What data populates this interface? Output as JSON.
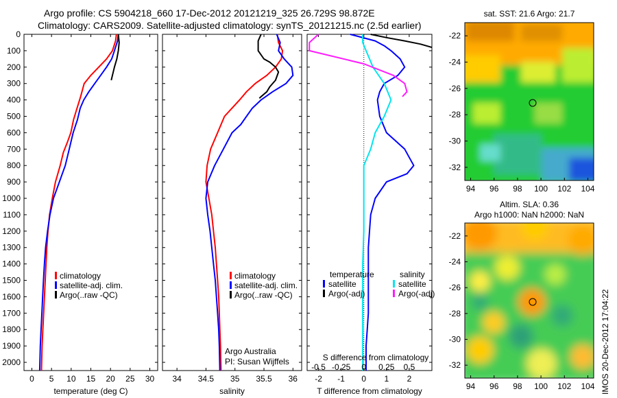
{
  "header": {
    "line1": "Argo profile: CS 5904218_660 17-Dec-2012 20121219_325 26.729S 98.872E",
    "line2": "Climatology: CARS2009. Satellite-adjusted climatology: synTS_20121215.nc (2.5d earlier)"
  },
  "footer_note": "IMOS 20-Dec-2012 17:04:22",
  "colors": {
    "climatology": "#ff0000",
    "satellite": "#0000ff",
    "argo": "#000000",
    "cyan": "#00e5ee",
    "magenta": "#ff1aff"
  },
  "depth_axis": {
    "ticks": [
      "0",
      "100",
      "200",
      "300",
      "400",
      "500",
      "600",
      "700",
      "800",
      "900",
      "1000",
      "1100",
      "1200",
      "1300",
      "1400",
      "1500",
      "1600",
      "1700",
      "1800",
      "1900",
      "2000"
    ]
  },
  "chart_data": [
    {
      "type": "line",
      "panel": "temperature",
      "xlabel": "temperature (deg C)",
      "xlim": [
        -2,
        32
      ],
      "ylim": [
        2050,
        0
      ],
      "xticks": [
        "0",
        "5",
        "10",
        "15",
        "20",
        "25",
        "30"
      ],
      "legend": {
        "items": [
          "climatology",
          "satellite-adj. clim.",
          "Argo(..raw -QC)"
        ]
      },
      "series": [
        {
          "name": "climatology",
          "color": "#ff0000",
          "x": [
            21.5,
            21.3,
            20.5,
            19.0,
            17.0,
            15.0,
            13.3,
            12.4,
            11.5,
            10.6,
            9.9,
            9.0,
            8.0,
            7.2,
            6.0,
            5.2,
            4.5,
            4.1,
            3.8,
            3.6,
            3.4,
            3.2,
            3.0,
            2.8,
            2.6,
            2.45
          ],
          "y": [
            0,
            40,
            100,
            150,
            200,
            250,
            300,
            380,
            450,
            520,
            600,
            660,
            720,
            800,
            900,
            1000,
            1100,
            1200,
            1300,
            1400,
            1500,
            1600,
            1700,
            1800,
            1900,
            2050
          ]
        },
        {
          "name": "satellite-adj. clim.",
          "color": "#0000ff",
          "x": [
            22.0,
            21.8,
            21.0,
            20.3,
            19.0,
            17.5,
            16.0,
            14.5,
            13.2,
            12.3,
            11.6,
            10.5,
            9.5,
            8.5,
            7.0,
            5.5,
            4.6,
            4.0,
            3.5,
            3.2,
            2.95,
            2.75,
            2.55,
            2.35,
            2.15,
            2.0
          ],
          "y": [
            0,
            40,
            100,
            150,
            200,
            250,
            300,
            350,
            400,
            450,
            520,
            600,
            700,
            800,
            900,
            1000,
            1100,
            1200,
            1300,
            1400,
            1500,
            1600,
            1700,
            1800,
            1900,
            2050
          ]
        },
        {
          "name": "Argo(..raw -QC)",
          "color": "#000000",
          "x": [
            22.0,
            22.2,
            22.0,
            21.6,
            21.0,
            20.5,
            20.2
          ],
          "y": [
            0,
            50,
            100,
            150,
            200,
            250,
            280
          ]
        }
      ]
    },
    {
      "type": "line",
      "panel": "salinity",
      "xlabel": "salinity",
      "xlim": [
        33.75,
        36.15
      ],
      "ylim": [
        2050,
        0
      ],
      "xticks": [
        "34",
        "34.5",
        "35",
        "35.5",
        "36"
      ],
      "legend": {
        "items": [
          "climatology",
          "satellite-adj. clim.",
          "Argo(..raw -QC)"
        ]
      },
      "annotation": [
        "Argo Australia",
        "PI: Susan Wijffels"
      ],
      "series": [
        {
          "name": "climatology",
          "color": "#ff0000",
          "x": [
            35.73,
            35.75,
            35.82,
            35.8,
            35.7,
            35.55,
            35.35,
            35.2,
            35.08,
            34.95,
            34.82,
            34.7,
            34.58,
            34.52,
            34.5,
            34.55,
            34.6,
            34.63,
            34.66,
            34.68,
            34.7,
            34.72,
            34.73,
            34.74,
            34.75,
            34.76
          ],
          "y": [
            0,
            50,
            100,
            150,
            200,
            250,
            300,
            350,
            400,
            450,
            500,
            600,
            700,
            800,
            900,
            1000,
            1100,
            1200,
            1300,
            1400,
            1500,
            1600,
            1700,
            1800,
            1900,
            2050
          ]
        },
        {
          "name": "satellite-adj. clim.",
          "color": "#0000ff",
          "x": [
            35.72,
            35.78,
            35.75,
            35.85,
            35.98,
            36.0,
            35.88,
            35.65,
            35.45,
            35.3,
            35.2,
            35.1,
            34.95,
            34.8,
            34.65,
            34.53,
            34.5,
            34.53,
            34.57,
            34.6,
            34.63,
            34.66,
            34.68,
            34.7,
            34.72,
            34.73,
            34.74
          ],
          "y": [
            0,
            50,
            100,
            150,
            200,
            250,
            300,
            350,
            400,
            450,
            500,
            550,
            600,
            700,
            800,
            900,
            1000,
            1100,
            1200,
            1300,
            1400,
            1500,
            1600,
            1700,
            1800,
            1900,
            2050
          ]
        },
        {
          "name": "Argo(..raw -QC)",
          "color": "#000000",
          "x": [
            35.45,
            35.4,
            35.4,
            35.5,
            35.6,
            35.7,
            35.75,
            35.7,
            35.6,
            35.55,
            35.45,
            35.42
          ],
          "y": [
            0,
            40,
            100,
            150,
            170,
            200,
            230,
            280,
            320,
            350,
            380,
            390
          ]
        }
      ]
    },
    {
      "type": "line",
      "panel": "difference",
      "xlabel": "T difference from climatology",
      "top_label": "S difference from climatology",
      "xlim": [
        -2.5,
        3.0
      ],
      "ylim": [
        2050,
        0
      ],
      "xticks": [
        "-2",
        "-1",
        "0",
        "1",
        "2"
      ],
      "top_ticks": [
        "-0.5",
        "-0.25",
        "0",
        "0.25",
        "0.5"
      ],
      "legend": {
        "temperature_header": "temperature",
        "salinity_header": "salinity",
        "items": [
          "satellite",
          "Argo(-adj)",
          "satellite",
          "Argo(-adj)"
        ]
      },
      "series": [
        {
          "name": "satellite",
          "group": "temperature",
          "color": "#0000ff",
          "x": [
            -0.6,
            0.5,
            0.9,
            1.2,
            1.6,
            1.8,
            1.5,
            0.9,
            0.7,
            0.6,
            0.7,
            1.0,
            1.8,
            2.0,
            2.2,
            1.9,
            1.0,
            0.5,
            0.3,
            0.25,
            0.2,
            0.2,
            0.2,
            0.15,
            0.1,
            0.1
          ],
          "y": [
            0,
            40,
            70,
            100,
            150,
            200,
            250,
            300,
            350,
            400,
            500,
            600,
            700,
            750,
            800,
            850,
            900,
            1000,
            1100,
            1200,
            1300,
            1500,
            1700,
            1800,
            1900,
            2050
          ]
        },
        {
          "name": "Argo(-adj)",
          "group": "temperature",
          "color": "#000000",
          "x": [
            0.3,
            1.0,
            1.8,
            2.5,
            3.0
          ],
          "y": [
            0,
            20,
            40,
            60,
            80
          ]
        },
        {
          "name": "satellite",
          "group": "salinity",
          "color": "#00e5ee",
          "x": [
            -0.05,
            -0.05,
            0.1,
            0.4,
            0.9,
            1.2,
            0.9,
            0.5,
            0.3,
            0.0,
            0.0,
            0.0,
            0.0,
            -0.05,
            -0.05,
            -0.05,
            -0.05
          ],
          "y": [
            0,
            50,
            100,
            200,
            300,
            400,
            500,
            600,
            700,
            800,
            900,
            1000,
            1200,
            1400,
            1600,
            1800,
            2050
          ]
        },
        {
          "name": "Argo(-adj)",
          "group": "salinity",
          "color": "#ff1aff",
          "x": [
            -2.0,
            -2.4,
            -2.4,
            0.0,
            1.3,
            1.8,
            1.9,
            1.7
          ],
          "y": [
            0,
            50,
            100,
            180,
            250,
            300,
            350,
            380
          ]
        }
      ]
    },
    {
      "type": "heatmap",
      "panel": "sst_map",
      "title": "sat. SST: 21.6  Argo: 21.7",
      "xlim": [
        93.5,
        104.5
      ],
      "ylim": [
        -33,
        -21
      ],
      "xticks": [
        "94",
        "96",
        "98",
        "100",
        "102",
        "104"
      ],
      "yticks": [
        "-22",
        "-24",
        "-26",
        "-28",
        "-30",
        "-32"
      ],
      "marker": {
        "x": 98.9,
        "y": -26.7
      }
    },
    {
      "type": "heatmap",
      "panel": "sla_map",
      "title": [
        "Altim. SLA: 0.36",
        "Argo h1000: NaN h2000: NaN"
      ],
      "xlim": [
        93.5,
        104.5
      ],
      "ylim": [
        -33,
        -21
      ],
      "xticks": [
        "94",
        "96",
        "98",
        "100",
        "102",
        "104"
      ],
      "yticks": [
        "-22",
        "-24",
        "-26",
        "-28",
        "-30",
        "-32"
      ],
      "marker": {
        "x": 98.9,
        "y": -26.7
      }
    }
  ]
}
